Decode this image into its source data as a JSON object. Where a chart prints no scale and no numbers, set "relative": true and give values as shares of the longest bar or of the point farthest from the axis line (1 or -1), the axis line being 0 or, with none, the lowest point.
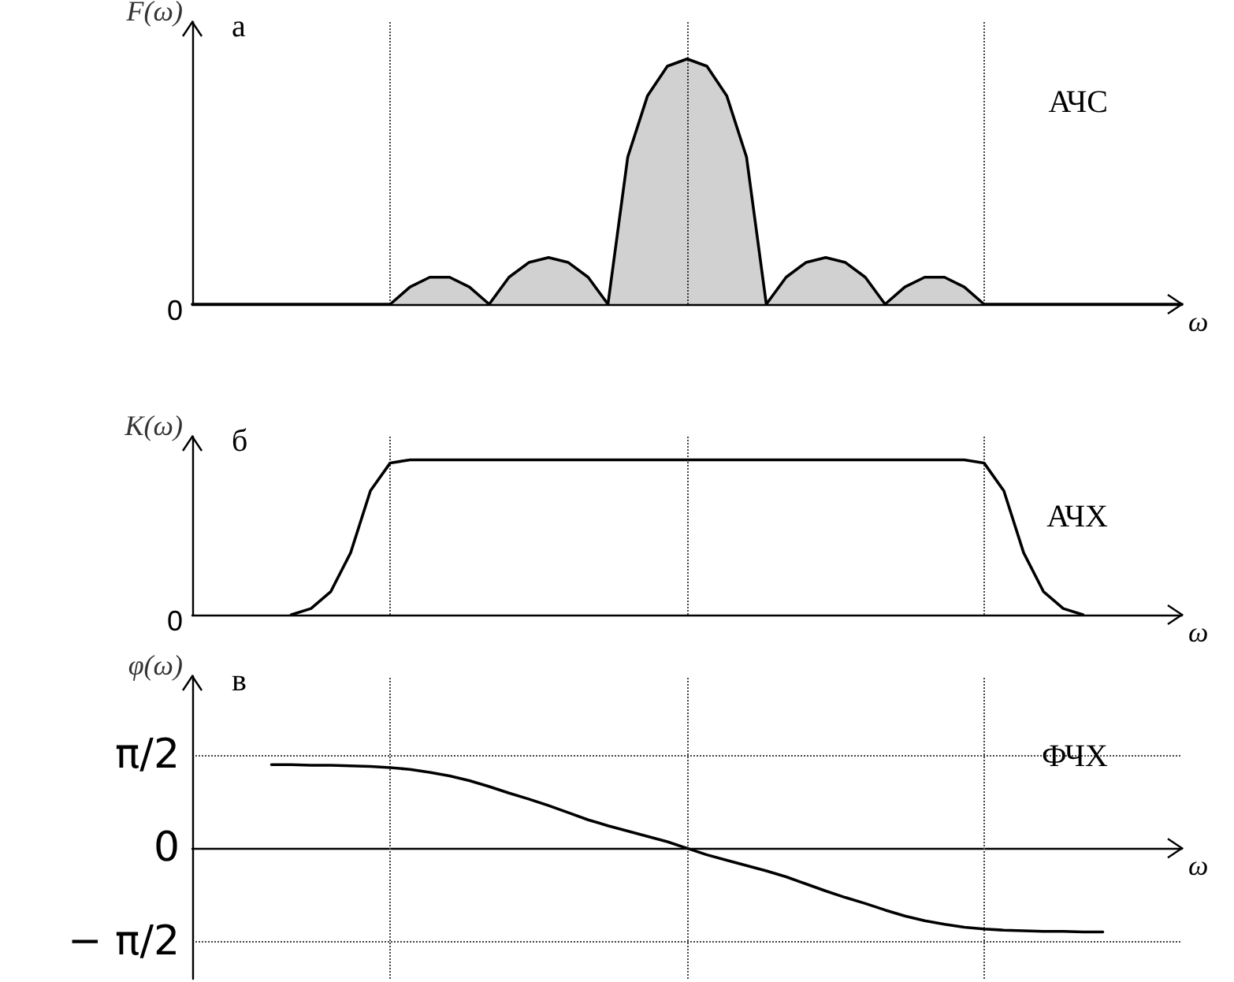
{
  "chart_data": [
    {
      "type": "area",
      "title": "а",
      "subtitle": "АЧС",
      "ylabel": "F(ω)",
      "xlabel": "ω",
      "relative": true,
      "tick_labels": "y",
      "grid": "x",
      "categories": [
        null,
        null,
        null,
        null,
        null,
        null,
        null,
        null,
        null,
        null,
        null,
        null,
        null,
        null,
        null,
        null,
        null,
        null,
        null,
        null,
        null,
        null,
        null,
        null,
        null,
        null,
        null,
        null,
        null,
        null,
        null,
        null,
        null,
        null,
        null,
        null,
        null,
        null,
        null,
        null,
        null,
        null,
        null,
        null,
        null,
        null,
        null,
        null,
        null,
        null,
        null
      ],
      "annotations": [
        "0"
      ],
      "series": [
        {
          "color": "#000000",
          "values": [
            0,
            0,
            0,
            0,
            0,
            0,
            0,
            0,
            0,
            0,
            0,
            0.07,
            0.11,
            0.11,
            0.07,
            0,
            0.11,
            0.17,
            0.19,
            0.17,
            0.11,
            0,
            0.6,
            0.85,
            0.97,
            1,
            0.97,
            0.85,
            0.6,
            0,
            0.11,
            0.17,
            0.19,
            0.17,
            0.11,
            0,
            0.07,
            0.11,
            0.11,
            0.07,
            0,
            0,
            0,
            0,
            0,
            0,
            0,
            0,
            0,
            0,
            0
          ]
        }
      ]
    },
    {
      "type": "line",
      "title": "б",
      "subtitle": "АЧХ",
      "ylabel": "K(ω)",
      "xlabel": "ω",
      "relative": true,
      "tick_labels": "y",
      "grid": "x",
      "categories": [
        null,
        null,
        null,
        null,
        null,
        null,
        null,
        null,
        null,
        null,
        null,
        null,
        null,
        null,
        null,
        null,
        null,
        null,
        null,
        null,
        null,
        null,
        null,
        null,
        null,
        null,
        null,
        null,
        null,
        null,
        null,
        null,
        null,
        null,
        null,
        null,
        null,
        null,
        null,
        null,
        null,
        null,
        null,
        null,
        null,
        null,
        null,
        null,
        null,
        null,
        null
      ],
      "annotations": [
        "0"
      ],
      "series": [
        {
          "color": "#000000",
          "values": [
            null,
            null,
            null,
            null,
            null,
            0,
            0.04,
            0.15,
            0.4,
            0.8,
            0.98,
            1,
            1,
            1,
            1,
            1,
            1,
            1,
            1,
            1,
            1,
            1,
            1,
            1,
            1,
            1,
            1,
            1,
            1,
            1,
            1,
            1,
            1,
            1,
            1,
            1,
            1,
            1,
            1,
            1,
            0.98,
            0.8,
            0.4,
            0.15,
            0.04,
            0,
            null,
            null,
            null,
            null,
            null
          ]
        }
      ]
    },
    {
      "type": "line",
      "title": "в",
      "subtitle": "ФЧХ",
      "ylabel": "φ(ω)",
      "xlabel": "ω",
      "tick_labels": "y",
      "grid": true,
      "categories": [
        null,
        null,
        null,
        null,
        null,
        null,
        null,
        null,
        null,
        null,
        null,
        null,
        null,
        null,
        null,
        null,
        null,
        null,
        null,
        null,
        null,
        null,
        null,
        null,
        null,
        null,
        null,
        null,
        null,
        null,
        null,
        null,
        null,
        null,
        null,
        null,
        null,
        null,
        null,
        null,
        null,
        null,
        null,
        null,
        null,
        null,
        null,
        null,
        null,
        null,
        null
      ],
      "ylim": [
        -2.2,
        2.9
      ],
      "yticks": [
        {
          "value": -1.5708,
          "label": "− π/2"
        },
        0,
        {
          "value": 1.5708,
          "label": "π/2"
        }
      ],
      "series": [
        {
          "color": "#000000",
          "values": [
            null,
            null,
            null,
            null,
            1.41,
            1.41,
            1.4,
            1.4,
            1.39,
            1.38,
            1.36,
            1.33,
            1.28,
            1.22,
            1.14,
            1.04,
            0.93,
            0.83,
            0.72,
            0.6,
            0.48,
            0.38,
            0.29,
            0.2,
            0.11,
            0,
            -0.11,
            -0.2,
            -0.29,
            -0.38,
            -0.48,
            -0.6,
            -0.72,
            -0.83,
            -0.93,
            -1.04,
            -1.14,
            -1.22,
            -1.28,
            -1.33,
            -1.36,
            -1.38,
            -1.39,
            -1.4,
            -1.4,
            -1.41,
            -1.41,
            null,
            null,
            null,
            null
          ]
        }
      ]
    }
  ]
}
